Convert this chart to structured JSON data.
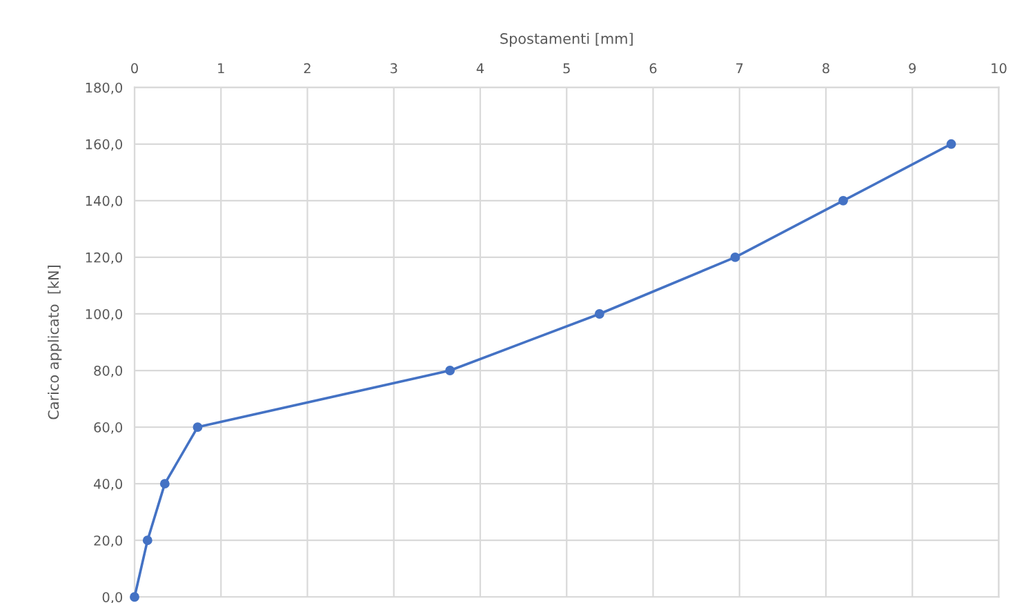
{
  "chart_data": {
    "type": "line",
    "xlabel": "Spostamenti [mm]",
    "ylabel": "Carico applicato  [kN]",
    "x": [
      0,
      0.15,
      0.35,
      0.73,
      3.65,
      5.38,
      6.95,
      8.2,
      9.45
    ],
    "series": [
      {
        "color": "#4472c4",
        "values": [
          0,
          20,
          40,
          60,
          80,
          100,
          120,
          140,
          160
        ]
      }
    ],
    "xlim": [
      0,
      10
    ],
    "xticks": [
      0,
      1,
      2,
      3,
      4,
      5,
      6,
      7,
      8,
      9,
      10
    ],
    "ylim": [
      0,
      180
    ],
    "yticks": [
      {
        "value": 0,
        "label": "0,0"
      },
      {
        "value": 20,
        "label": "20,0"
      },
      {
        "value": 40,
        "label": "40,0"
      },
      {
        "value": 60,
        "label": "60,0"
      },
      {
        "value": 80,
        "label": "80,0"
      },
      {
        "value": 100,
        "label": "100,0"
      },
      {
        "value": 120,
        "label": "120,0"
      },
      {
        "value": 140,
        "label": "140,0"
      },
      {
        "value": 160,
        "label": "160,0"
      },
      {
        "value": 180,
        "label": "180,0"
      }
    ],
    "grid": true,
    "marker": "circle",
    "line_style": "solid"
  }
}
